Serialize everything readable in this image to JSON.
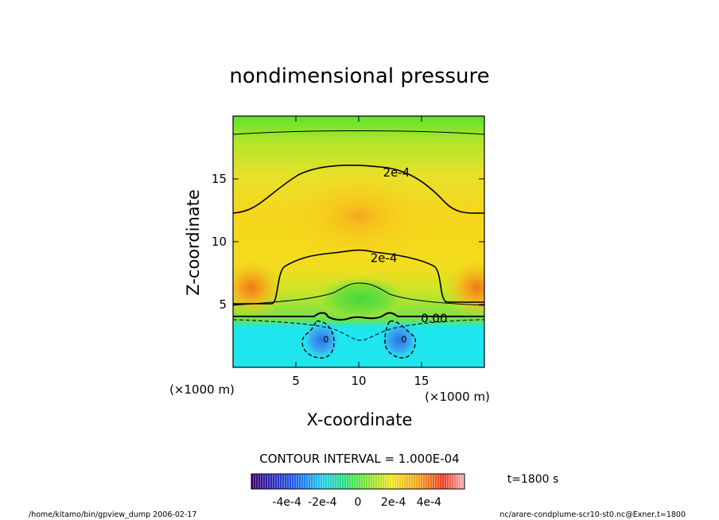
{
  "chart_data": {
    "type": "heatmap",
    "title": "nondimensional pressure",
    "xlabel": "X-coordinate",
    "ylabel": "Z-coordinate",
    "x_unit": "(×1000 m)",
    "y_unit": "(×1000 m)",
    "xlim": [
      0,
      20
    ],
    "ylim": [
      0,
      20
    ],
    "x_ticks": [
      5,
      10,
      15
    ],
    "y_ticks": [
      5,
      10,
      15
    ],
    "contour_interval_text": "CONTOUR INTERVAL = 1.000E-04",
    "time_text": "t=1800 s",
    "colorbar": {
      "range": [
        -0.0006,
        0.0006
      ],
      "tick_labels": [
        "-4e-4",
        "-2e-4",
        "0",
        "2e-4",
        "4e-4"
      ],
      "tick_values": [
        -0.0004,
        -0.0002,
        0,
        0.0002,
        0.0004
      ]
    },
    "contour_labels": [
      {
        "text": "2e-4",
        "x": 13.0,
        "z": 15.5
      },
      {
        "text": "2e-4",
        "x": 12.0,
        "z": 8.7
      },
      {
        "text": "0.00",
        "x": 16.0,
        "z": 3.9
      },
      {
        "text": "0",
        "x": 7.4,
        "z": 2.3
      },
      {
        "text": "0",
        "x": 13.6,
        "z": 2.3
      }
    ]
  },
  "footer": {
    "left": "/home/kitamo/bin/gpview_dump  2006-02-17",
    "right": "nc/arare-condplume-scr10-st0.nc@Exner,t=1800"
  }
}
